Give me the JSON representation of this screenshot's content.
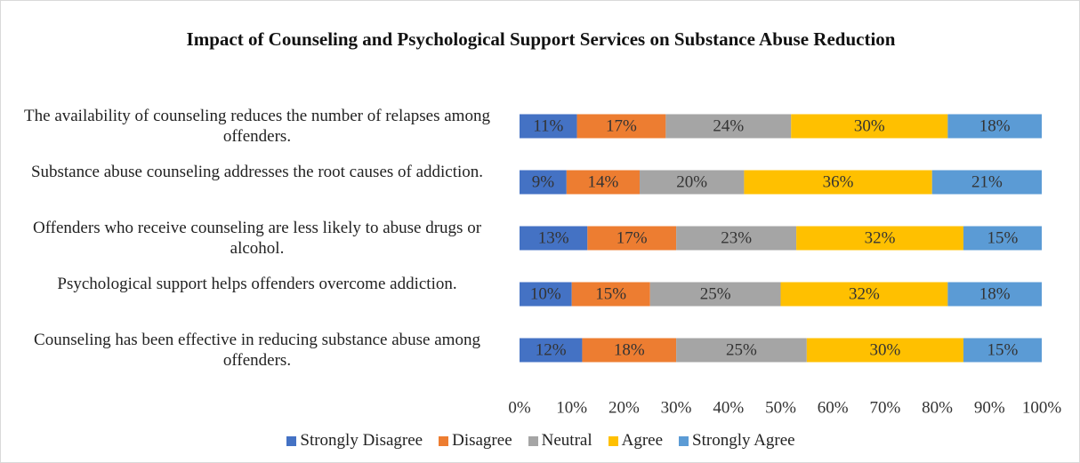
{
  "chart_data": {
    "type": "stacked-bar-horizontal",
    "title": "Impact of Counseling and Psychological Support Services on Substance Abuse Reduction",
    "categories": [
      "The availability of counseling reduces the number of relapses among offenders.",
      "Substance abuse counseling addresses the root causes of addiction.",
      "Offenders who receive counseling are less likely to abuse drugs or alcohol.",
      "Psychological support helps offenders overcome addiction.",
      "Counseling has been effective in reducing substance abuse among offenders."
    ],
    "series": [
      {
        "name": "Strongly Disagree",
        "color": "#4472c4",
        "values": [
          11,
          9,
          13,
          10,
          12
        ],
        "value_labels": [
          "11%",
          "9%",
          "13%",
          "10%",
          "12%"
        ]
      },
      {
        "name": "Disagree",
        "color": "#ed7d31",
        "values": [
          17,
          14,
          17,
          15,
          18
        ],
        "value_labels": [
          "17%",
          "14%",
          "17%",
          "15%",
          "18%"
        ]
      },
      {
        "name": "Neutral",
        "color": "#a5a5a5",
        "values": [
          24,
          20,
          23,
          25,
          25
        ],
        "value_labels": [
          "24%",
          "20%",
          "23%",
          "25%",
          "25%"
        ]
      },
      {
        "name": "Agree",
        "color": "#ffc000",
        "values": [
          30,
          36,
          32,
          32,
          30
        ],
        "value_labels": [
          "30%",
          "36%",
          "32%",
          "32%",
          "30%"
        ]
      },
      {
        "name": "Strongly Agree",
        "color": "#5b9bd5",
        "values": [
          18,
          21,
          15,
          18,
          15
        ],
        "value_labels": [
          "18%",
          "21%",
          "15%",
          "18%",
          "15%"
        ]
      }
    ],
    "xlim": [
      0,
      100
    ],
    "xticks": [
      {
        "value": 0,
        "label": "0%"
      },
      {
        "value": 10,
        "label": "10%"
      },
      {
        "value": 20,
        "label": "20%"
      },
      {
        "value": 30,
        "label": "30%"
      },
      {
        "value": 40,
        "label": "40%"
      },
      {
        "value": 50,
        "label": "50%"
      },
      {
        "value": 60,
        "label": "60%"
      },
      {
        "value": 70,
        "label": "70%"
      },
      {
        "value": 80,
        "label": "80%"
      },
      {
        "value": 90,
        "label": "90%"
      },
      {
        "value": 100,
        "label": "100%"
      }
    ],
    "legend": "bottom"
  }
}
